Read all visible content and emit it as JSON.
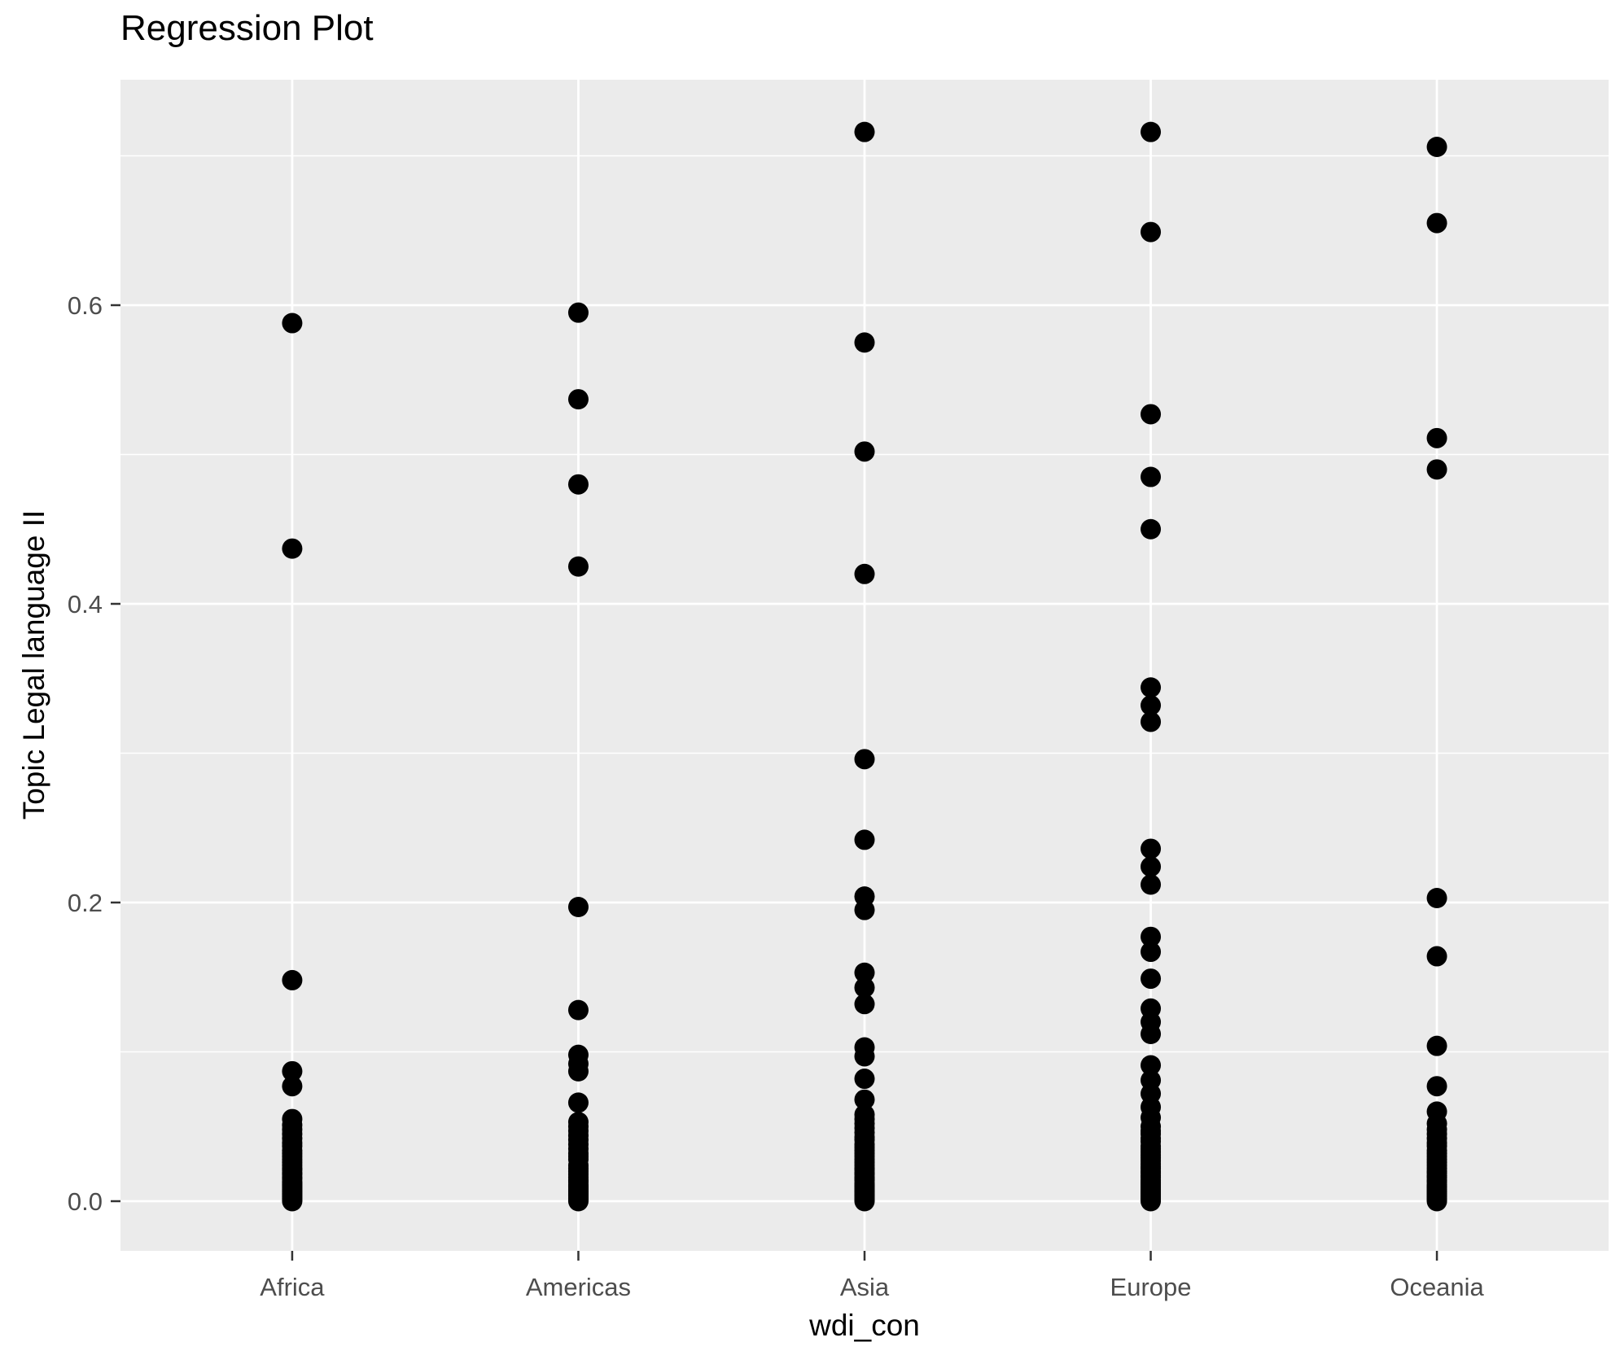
{
  "title": "Regression Plot",
  "x_axis": {
    "label": "wdi_con",
    "categories": [
      "Africa",
      "Americas",
      "Asia",
      "Europe",
      "Oceania"
    ]
  },
  "y_axis": {
    "label": "Topic Legal language II",
    "tick_labels": [
      "0.0",
      "0.2",
      "0.4",
      "0.6"
    ],
    "tick_values": [
      0.0,
      0.2,
      0.4,
      0.6
    ],
    "minor_values": [
      0.1,
      0.3,
      0.5,
      0.7
    ]
  },
  "style": {
    "panel_bg": "#EBEBEB",
    "grid_color": "#FFFFFF",
    "point_color": "#000000",
    "axis_text_color": "#4D4D4D",
    "tick_mark_color": "#333333",
    "title_color": "#000000"
  },
  "chart_data": {
    "type": "scatter",
    "title": "Regression Plot",
    "xlabel": "wdi_con",
    "ylabel": "Topic Legal language II",
    "categories": [
      "Africa",
      "Americas",
      "Asia",
      "Europe",
      "Oceania"
    ],
    "ylim": [
      -0.033,
      0.751
    ],
    "y_major_gridlines": [
      0.0,
      0.2,
      0.4,
      0.6
    ],
    "y_minor_gridlines": [
      0.1,
      0.3,
      0.5,
      0.7
    ],
    "legend": "none",
    "point_radius_px": 12.5,
    "series": [
      {
        "name": "Africa",
        "values": [
          0.588,
          0.437,
          0.148,
          0.087,
          0.077,
          0.055,
          0.051,
          0.048,
          0.045,
          0.042,
          0.039,
          0.037,
          0.034,
          0.032,
          0.03,
          0.028,
          0.026,
          0.024,
          0.022,
          0.021,
          0.019,
          0.018,
          0.016,
          0.015,
          0.013,
          0.012,
          0.011,
          0.01,
          0.009,
          0.008,
          0.007,
          0.006,
          0.005,
          0.004,
          0.003,
          0.002,
          0.001,
          0.0
        ]
      },
      {
        "name": "Americas",
        "values": [
          0.595,
          0.537,
          0.48,
          0.425,
          0.197,
          0.128,
          0.098,
          0.092,
          0.087,
          0.066,
          0.053,
          0.05,
          0.047,
          0.044,
          0.041,
          0.038,
          0.035,
          0.032,
          0.03,
          0.028,
          0.024,
          0.022,
          0.02,
          0.018,
          0.016,
          0.014,
          0.013,
          0.011,
          0.01,
          0.009,
          0.008,
          0.007,
          0.006,
          0.005,
          0.004,
          0.003,
          0.002,
          0.001,
          0.0
        ]
      },
      {
        "name": "Asia",
        "values": [
          0.716,
          0.575,
          0.502,
          0.42,
          0.296,
          0.242,
          0.204,
          0.195,
          0.153,
          0.143,
          0.132,
          0.103,
          0.097,
          0.082,
          0.068,
          0.058,
          0.055,
          0.052,
          0.049,
          0.046,
          0.043,
          0.041,
          0.038,
          0.036,
          0.034,
          0.032,
          0.03,
          0.028,
          0.026,
          0.024,
          0.022,
          0.021,
          0.019,
          0.018,
          0.016,
          0.015,
          0.014,
          0.012,
          0.011,
          0.01,
          0.009,
          0.008,
          0.007,
          0.006,
          0.005,
          0.004,
          0.003,
          0.002,
          0.001,
          0.0
        ]
      },
      {
        "name": "Europe",
        "values": [
          0.716,
          0.649,
          0.527,
          0.485,
          0.45,
          0.344,
          0.332,
          0.321,
          0.236,
          0.224,
          0.212,
          0.177,
          0.167,
          0.149,
          0.129,
          0.12,
          0.112,
          0.091,
          0.081,
          0.072,
          0.063,
          0.056,
          0.05,
          0.047,
          0.045,
          0.042,
          0.04,
          0.037,
          0.035,
          0.033,
          0.031,
          0.029,
          0.027,
          0.025,
          0.023,
          0.022,
          0.02,
          0.019,
          0.017,
          0.016,
          0.014,
          0.013,
          0.012,
          0.011,
          0.01,
          0.009,
          0.008,
          0.007,
          0.006,
          0.005,
          0.004,
          0.003,
          0.002,
          0.001,
          0.0
        ]
      },
      {
        "name": "Oceania",
        "values": [
          0.706,
          0.655,
          0.511,
          0.49,
          0.203,
          0.164,
          0.104,
          0.077,
          0.06,
          0.052,
          0.048,
          0.045,
          0.042,
          0.039,
          0.037,
          0.034,
          0.032,
          0.03,
          0.028,
          0.026,
          0.024,
          0.022,
          0.02,
          0.019,
          0.017,
          0.016,
          0.014,
          0.013,
          0.011,
          0.01,
          0.009,
          0.008,
          0.007,
          0.006,
          0.005,
          0.004,
          0.003,
          0.002,
          0.001,
          0.0
        ]
      }
    ]
  }
}
